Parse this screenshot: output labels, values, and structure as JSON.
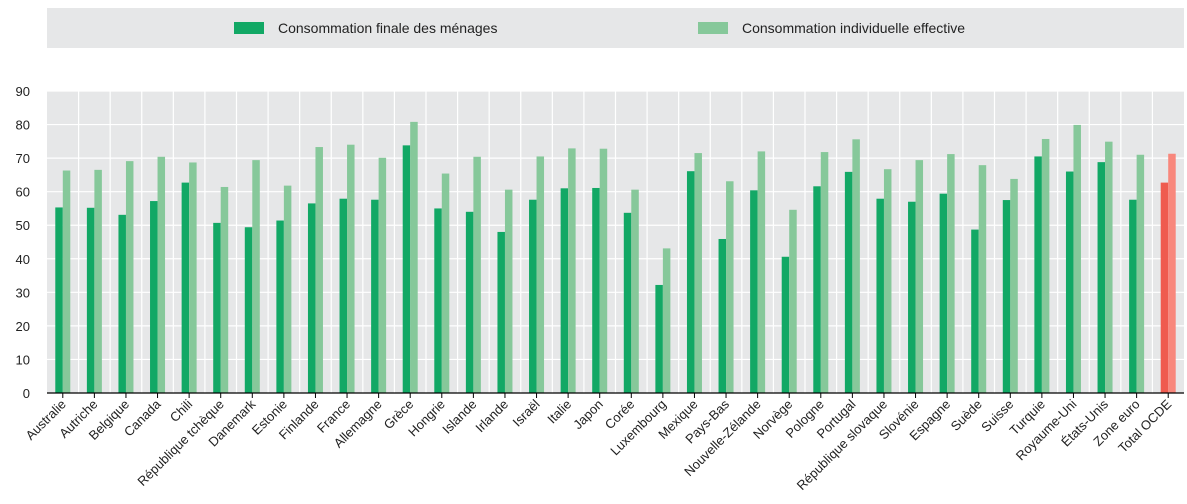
{
  "legend": {
    "series1_label": "Consommation finale des ménages",
    "series2_label": "Consommation individuelle effective"
  },
  "colors": {
    "series1": "#12a865",
    "series2": "#86c89a",
    "highlight1": "#ef5b4f",
    "highlight2": "#f8877c",
    "background_band": "#e6e7e8"
  },
  "chart_data": {
    "type": "bar",
    "categories": [
      "Australie",
      "Autriche",
      "Belgique",
      "Canada",
      "Chili",
      "République tchèque",
      "Danemark",
      "Estonie",
      "Finlande",
      "France",
      "Allemagne",
      "Grèce",
      "Hongrie",
      "Islande",
      "Irlande",
      "Israël",
      "Italie",
      "Japon",
      "Corée",
      "Luxembourg",
      "Mexique",
      "Pays-Bas",
      "Nouvelle-Zélande",
      "Norvège",
      "Pologne",
      "Portugal",
      "République slovaque",
      "Slovénie",
      "Espagne",
      "Suède",
      "Suisse",
      "Turquie",
      "Royaume-Uni",
      "États-Unis",
      "Zone euro",
      "Total OCDE"
    ],
    "series": [
      {
        "name": "Consommation finale des ménages",
        "values": [
          55.3,
          55.2,
          53.1,
          57.2,
          62.7,
          50.7,
          49.4,
          51.4,
          56.5,
          57.9,
          57.6,
          73.8,
          55.0,
          54.0,
          48.0,
          57.6,
          61.0,
          61.1,
          53.7,
          32.2,
          66.1,
          45.9,
          60.4,
          40.6,
          61.6,
          65.9,
          57.9,
          57.0,
          59.4,
          48.7,
          57.5,
          70.5,
          66.0,
          68.8,
          57.6,
          62.7
        ]
      },
      {
        "name": "Consommation individuelle effective",
        "values": [
          66.3,
          66.5,
          69.1,
          70.4,
          68.7,
          61.4,
          69.4,
          61.8,
          73.3,
          74.0,
          70.1,
          80.8,
          65.4,
          70.4,
          60.6,
          70.5,
          72.9,
          72.8,
          60.6,
          43.1,
          71.5,
          63.1,
          72.0,
          54.6,
          71.8,
          75.6,
          66.7,
          69.4,
          71.2,
          67.9,
          63.8,
          75.7,
          79.9,
          74.9,
          71.0,
          71.3
        ]
      }
    ],
    "highlight_category": "Total OCDE",
    "yticks": [
      0,
      10,
      20,
      30,
      40,
      50,
      60,
      70,
      80,
      90
    ],
    "ylim": [
      0,
      90
    ],
    "grid": true,
    "legend_position": "top"
  }
}
